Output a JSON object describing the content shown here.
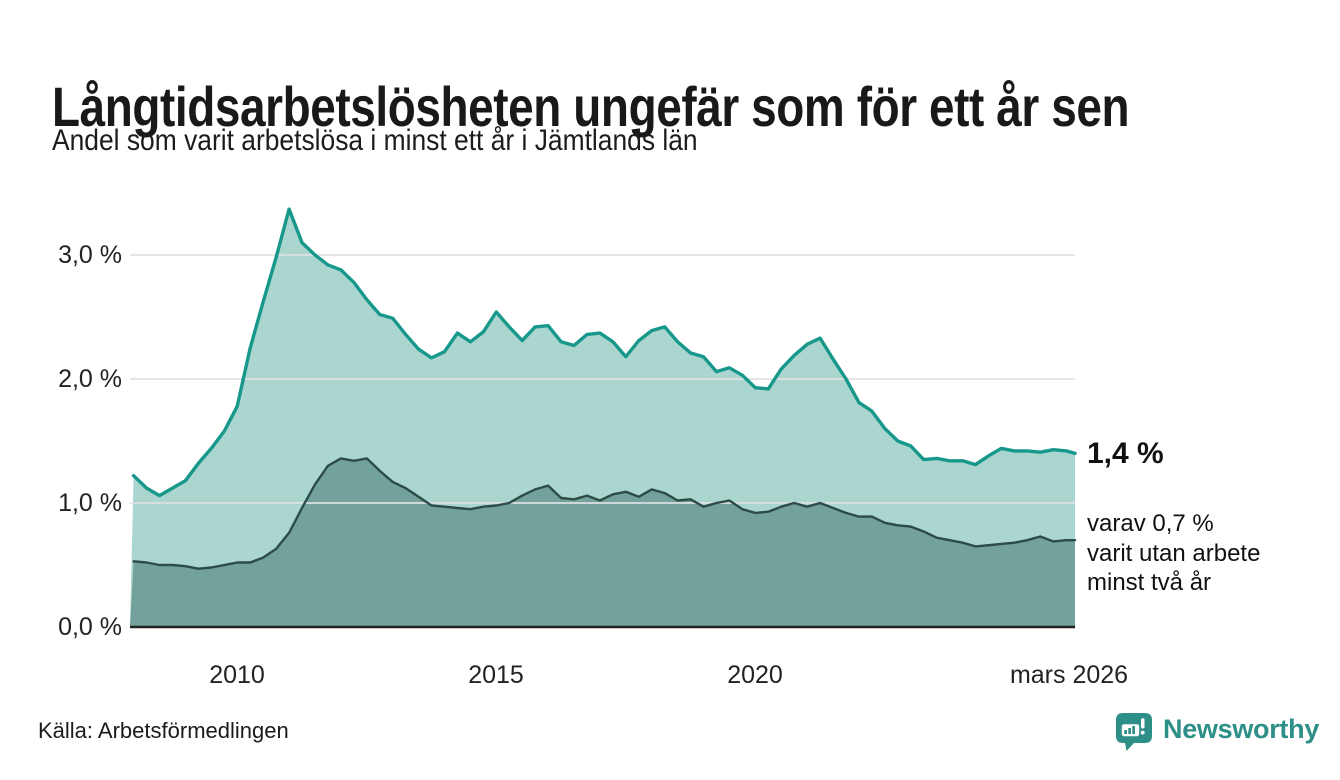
{
  "header": {
    "title": "Långtidsarbetslösheten ungefär som för ett år sen",
    "subtitle": "Andel som varit arbetslösa i minst ett år i Jämtlands län"
  },
  "annotations": {
    "latest_value": "1,4 %",
    "detail_lines": [
      "varav 0,7 %",
      "varit utan arbete",
      "minst två år"
    ]
  },
  "footer": {
    "source": "Källa: Arbetsförmedlingen",
    "brand": "Newsworthy"
  },
  "colors": {
    "total_line": "#17988b",
    "total_fill": "#abd6d0",
    "two_year_line": "#2d4c47",
    "two_year_fill": "#73a19b",
    "gridline": "rgba(222,226,225,0.85)",
    "axis_line": "#222222",
    "text": "#1a1a1a",
    "brand_teal": "#2e8f88"
  },
  "chart_data": {
    "type": "area",
    "title": "Långtidsarbetslösheten ungefär som för ett år sen",
    "subtitle": "Andel som varit arbetslösa i minst ett år i Jämtlands län",
    "unit": "%",
    "xlim": [
      2007.93,
      2026.17
    ],
    "ylim": [
      0,
      3.55
    ],
    "grid": "horizontal",
    "legend_position": "annotated-at-line-end",
    "x": [
      2008.0,
      2008.25,
      2008.5,
      2008.75,
      2009.0,
      2009.25,
      2009.5,
      2009.75,
      2010.0,
      2010.25,
      2010.5,
      2010.75,
      2011.0,
      2011.25,
      2011.5,
      2011.75,
      2012.0,
      2012.25,
      2012.5,
      2012.75,
      2013.0,
      2013.25,
      2013.5,
      2013.75,
      2014.0,
      2014.25,
      2014.5,
      2014.75,
      2015.0,
      2015.25,
      2015.5,
      2015.75,
      2016.0,
      2016.25,
      2016.5,
      2016.75,
      2017.0,
      2017.25,
      2017.5,
      2017.75,
      2018.0,
      2018.25,
      2018.5,
      2018.75,
      2019.0,
      2019.25,
      2019.5,
      2019.75,
      2020.0,
      2020.25,
      2020.5,
      2020.75,
      2021.0,
      2021.25,
      2021.5,
      2021.75,
      2022.0,
      2022.25,
      2022.5,
      2022.75,
      2023.0,
      2023.25,
      2023.5,
      2023.75,
      2024.0,
      2024.25,
      2024.5,
      2024.75,
      2025.0,
      2025.25,
      2025.5,
      2025.75,
      2026.0,
      2026.17
    ],
    "series": [
      {
        "name": "Arbetslösa minst ett år",
        "end_label": "1,4 %",
        "values": [
          1.22,
          1.12,
          1.06,
          1.12,
          1.18,
          1.32,
          1.44,
          1.58,
          1.78,
          2.25,
          2.62,
          2.98,
          3.37,
          3.1,
          3.0,
          2.92,
          2.88,
          2.78,
          2.64,
          2.52,
          2.49,
          2.36,
          2.24,
          2.17,
          2.22,
          2.37,
          2.3,
          2.38,
          2.54,
          2.42,
          2.31,
          2.42,
          2.43,
          2.3,
          2.27,
          2.36,
          2.37,
          2.3,
          2.18,
          2.31,
          2.39,
          2.42,
          2.3,
          2.21,
          2.18,
          2.06,
          2.09,
          2.03,
          1.93,
          1.92,
          2.08,
          2.19,
          2.28,
          2.33,
          2.16,
          2.0,
          1.81,
          1.74,
          1.6,
          1.5,
          1.46,
          1.35,
          1.36,
          1.34,
          1.34,
          1.31,
          1.38,
          1.44,
          1.42,
          1.42,
          1.41,
          1.43,
          1.42,
          1.4
        ]
      },
      {
        "name": "Arbetslösa minst två år",
        "end_label": "varav 0,7 % varit utan arbete minst två år",
        "values": [
          0.53,
          0.52,
          0.5,
          0.5,
          0.49,
          0.47,
          0.48,
          0.5,
          0.52,
          0.52,
          0.56,
          0.63,
          0.76,
          0.96,
          1.15,
          1.3,
          1.36,
          1.34,
          1.36,
          1.26,
          1.17,
          1.12,
          1.05,
          0.98,
          0.97,
          0.96,
          0.95,
          0.97,
          0.98,
          1.0,
          1.06,
          1.11,
          1.14,
          1.04,
          1.03,
          1.06,
          1.02,
          1.07,
          1.09,
          1.05,
          1.11,
          1.08,
          1.02,
          1.03,
          0.97,
          1.0,
          1.02,
          0.95,
          0.92,
          0.93,
          0.97,
          1.0,
          0.97,
          1.0,
          0.96,
          0.92,
          0.89,
          0.89,
          0.84,
          0.82,
          0.81,
          0.77,
          0.72,
          0.7,
          0.68,
          0.65,
          0.66,
          0.67,
          0.68,
          0.7,
          0.73,
          0.69,
          0.7,
          0.7
        ]
      }
    ],
    "yticks": [
      {
        "value": 3.0,
        "label": "3,0 %"
      },
      {
        "value": 2.0,
        "label": "2,0 %"
      },
      {
        "value": 1.0,
        "label": "1,0 %"
      },
      {
        "value": 0.0,
        "label": "0,0 %"
      }
    ],
    "xticks": [
      {
        "value": 2010,
        "label": "2010"
      },
      {
        "value": 2015,
        "label": "2015"
      },
      {
        "value": 2020,
        "label": "2020"
      },
      {
        "value": 2026.05,
        "label": "mars 2026"
      }
    ]
  }
}
